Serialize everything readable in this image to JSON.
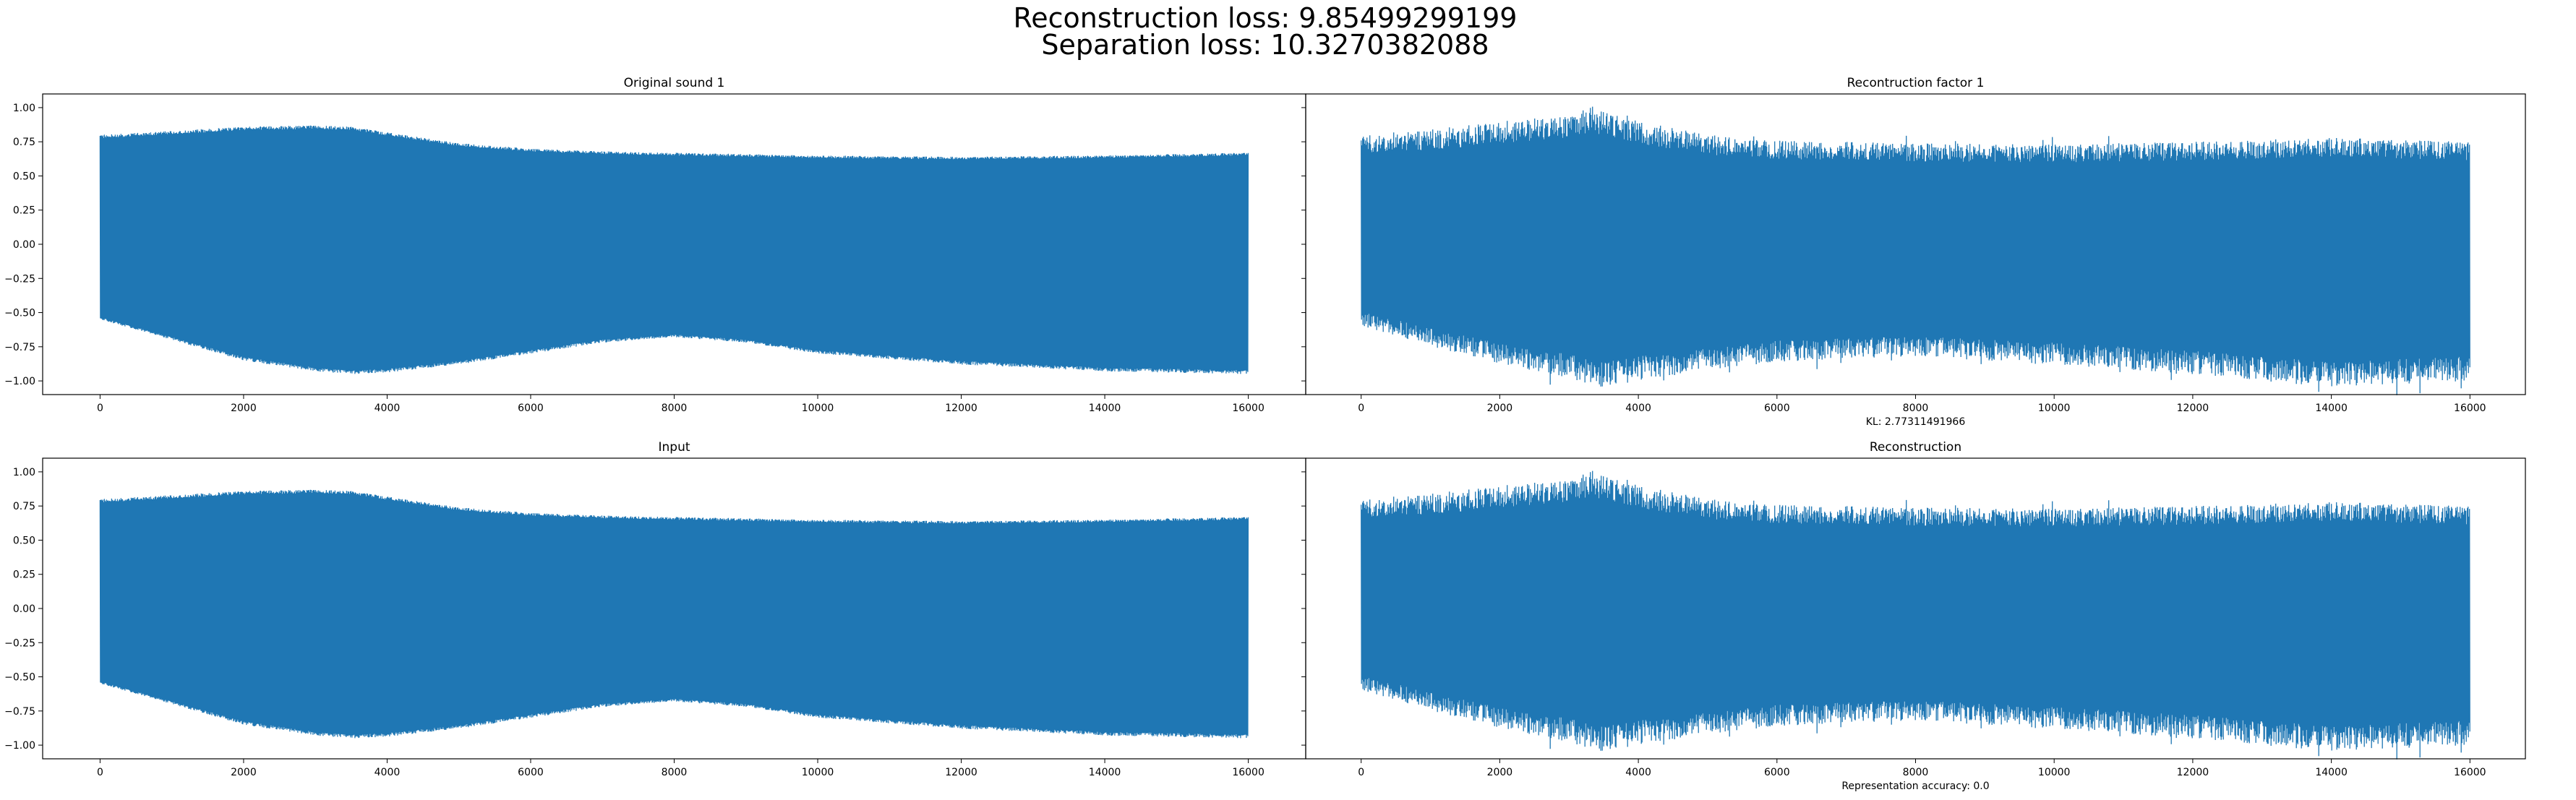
{
  "suptitle": {
    "line1": "Reconstruction loss: 9.85499299199",
    "line2": "Separation loss: 10.3270382088"
  },
  "chart_data": [
    {
      "type": "line",
      "title": "Original sound 1",
      "xlabel": "",
      "ylabel": "",
      "xlim": [
        -800,
        16800
      ],
      "ylim": [
        -1.1,
        1.1
      ],
      "xticks": [
        0,
        2000,
        4000,
        6000,
        8000,
        10000,
        12000,
        14000,
        16000
      ],
      "xtick_labels": [
        "0",
        "2000",
        "4000",
        "6000",
        "8000",
        "10000",
        "12000",
        "14000",
        "16000"
      ],
      "yticks": [
        1.0,
        0.75,
        0.5,
        0.25,
        0.0,
        -0.25,
        -0.5,
        -0.75,
        -1.0
      ],
      "ytick_labels": [
        "1.00",
        "0.75",
        "0.50",
        "0.25",
        "0.00",
        "−0.25",
        "−0.50",
        "−0.75",
        "−1.00"
      ],
      "color": "#1f77b4",
      "samples": 16000,
      "upper_envelope": {
        "x": [
          0,
          1000,
          2000,
          3000,
          3500,
          4000,
          5000,
          6000,
          7000,
          8000,
          9000,
          10000,
          12000,
          14000,
          16000
        ],
        "y": [
          0.8,
          0.83,
          0.86,
          0.87,
          0.86,
          0.82,
          0.74,
          0.7,
          0.68,
          0.67,
          0.66,
          0.65,
          0.64,
          0.65,
          0.67
        ]
      },
      "lower_envelope": {
        "x": [
          0,
          1000,
          2000,
          3000,
          3500,
          4000,
          5000,
          6000,
          7000,
          8000,
          9000,
          10000,
          12000,
          14000,
          16000
        ],
        "y": [
          -0.55,
          -0.7,
          -0.85,
          -0.93,
          -0.95,
          -0.94,
          -0.88,
          -0.8,
          -0.72,
          -0.68,
          -0.72,
          -0.8,
          -0.88,
          -0.93,
          -0.95
        ]
      }
    },
    {
      "type": "line",
      "title": "Recontruction factor 1",
      "xlabel": "KL: 2.77311491966",
      "ylabel": "",
      "xlim": [
        -800,
        16800
      ],
      "ylim": [
        -1.1,
        1.1
      ],
      "xticks": [
        0,
        2000,
        4000,
        6000,
        8000,
        10000,
        12000,
        14000,
        16000
      ],
      "xtick_labels": [
        "0",
        "2000",
        "4000",
        "6000",
        "8000",
        "10000",
        "12000",
        "14000",
        "16000"
      ],
      "color": "#1f77b4",
      "samples": 16000,
      "upper_envelope": {
        "x": [
          0,
          1000,
          2000,
          3000,
          3300,
          4000,
          5000,
          6000,
          8000,
          10000,
          12000,
          14000,
          16000
        ],
        "y": [
          0.8,
          0.84,
          0.9,
          0.95,
          1.0,
          0.9,
          0.8,
          0.76,
          0.74,
          0.73,
          0.75,
          0.78,
          0.75
        ]
      },
      "lower_envelope": {
        "x": [
          0,
          1000,
          2000,
          3000,
          3500,
          4000,
          5000,
          6000,
          8000,
          10000,
          12000,
          14000,
          16000
        ],
        "y": [
          -0.6,
          -0.75,
          -0.88,
          -0.98,
          -1.05,
          -1.0,
          -0.92,
          -0.86,
          -0.82,
          -0.88,
          -0.95,
          -1.05,
          -1.0
        ]
      }
    },
    {
      "type": "line",
      "title": "Input",
      "xlabel": "",
      "ylabel": "",
      "xlim": [
        -800,
        16800
      ],
      "ylim": [
        -1.1,
        1.1
      ],
      "xticks": [
        0,
        2000,
        4000,
        6000,
        8000,
        10000,
        12000,
        14000,
        16000
      ],
      "xtick_labels": [
        "0",
        "2000",
        "4000",
        "6000",
        "8000",
        "10000",
        "12000",
        "14000",
        "16000"
      ],
      "yticks": [
        1.0,
        0.75,
        0.5,
        0.25,
        0.0,
        -0.25,
        -0.5,
        -0.75,
        -1.0
      ],
      "ytick_labels": [
        "1.00",
        "0.75",
        "0.50",
        "0.25",
        "0.00",
        "−0.25",
        "−0.50",
        "−0.75",
        "−1.00"
      ],
      "color": "#1f77b4",
      "samples": 16000,
      "upper_envelope": {
        "x": [
          0,
          1000,
          2000,
          3000,
          3500,
          4000,
          5000,
          6000,
          7000,
          8000,
          9000,
          10000,
          12000,
          14000,
          16000
        ],
        "y": [
          0.8,
          0.83,
          0.86,
          0.87,
          0.86,
          0.82,
          0.74,
          0.7,
          0.68,
          0.67,
          0.66,
          0.65,
          0.64,
          0.65,
          0.67
        ]
      },
      "lower_envelope": {
        "x": [
          0,
          1000,
          2000,
          3000,
          3500,
          4000,
          5000,
          6000,
          7000,
          8000,
          9000,
          10000,
          12000,
          14000,
          16000
        ],
        "y": [
          -0.55,
          -0.7,
          -0.85,
          -0.93,
          -0.95,
          -0.94,
          -0.88,
          -0.8,
          -0.72,
          -0.68,
          -0.72,
          -0.8,
          -0.88,
          -0.93,
          -0.95
        ]
      }
    },
    {
      "type": "line",
      "title": "Reconstruction",
      "xlabel": "Representation accuracy: 0.0",
      "ylabel": "",
      "xlim": [
        -800,
        16800
      ],
      "ylim": [
        -1.1,
        1.1
      ],
      "xticks": [
        0,
        2000,
        4000,
        6000,
        8000,
        10000,
        12000,
        14000,
        16000
      ],
      "xtick_labels": [
        "0",
        "2000",
        "4000",
        "6000",
        "8000",
        "10000",
        "12000",
        "14000",
        "16000"
      ],
      "color": "#1f77b4",
      "samples": 16000,
      "upper_envelope": {
        "x": [
          0,
          1000,
          2000,
          3000,
          3300,
          4000,
          5000,
          6000,
          8000,
          10000,
          12000,
          14000,
          16000
        ],
        "y": [
          0.8,
          0.84,
          0.9,
          0.95,
          1.0,
          0.9,
          0.8,
          0.76,
          0.74,
          0.73,
          0.75,
          0.78,
          0.75
        ]
      },
      "lower_envelope": {
        "x": [
          0,
          1000,
          2000,
          3000,
          3500,
          4000,
          5000,
          6000,
          8000,
          10000,
          12000,
          14000,
          16000
        ],
        "y": [
          -0.6,
          -0.75,
          -0.88,
          -0.98,
          -1.05,
          -1.0,
          -0.92,
          -0.86,
          -0.82,
          -0.88,
          -0.95,
          -1.05,
          -1.0
        ]
      }
    }
  ]
}
